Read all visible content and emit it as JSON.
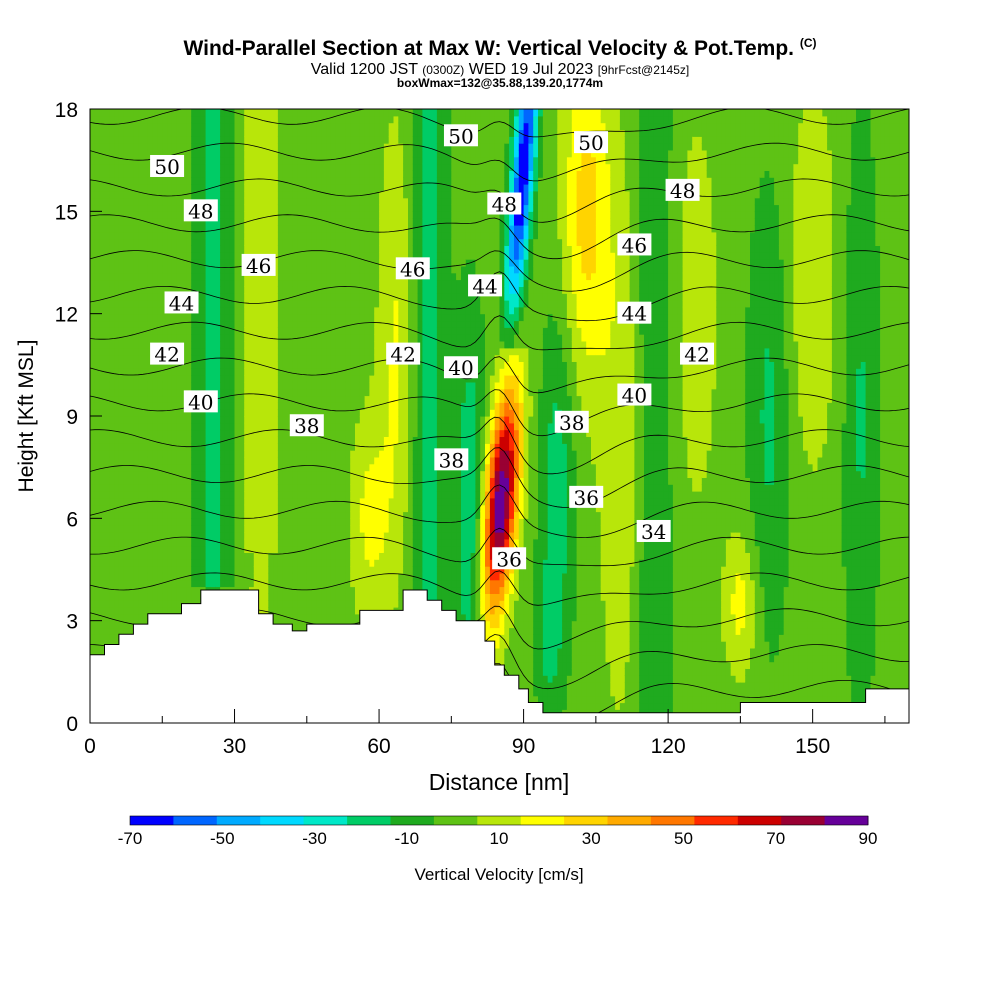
{
  "title": {
    "main": "Wind-Parallel Section at Max W: Vertical Velocity & Pot.Temp.",
    "copyright": "(C)",
    "valid_prefix": "Valid 1200 JST",
    "valid_utc": "(0300Z)",
    "valid_date": "WED 19 Jul 2023",
    "forecast": "[9hrFcst@2145z]",
    "box_info": "boxWmax=132@35.88,139.20,1774m"
  },
  "chart_data": {
    "type": "heatmap",
    "xlabel": "Distance [nm]",
    "ylabel": "Height [Kft MSL]",
    "xlim": [
      0,
      170
    ],
    "ylim": [
      0,
      18
    ],
    "x_ticks": [
      "0",
      "30",
      "60",
      "90",
      "120",
      "150"
    ],
    "y_ticks": [
      "0",
      "3",
      "6",
      "9",
      "12",
      "15",
      "18"
    ],
    "colorbar": {
      "label": "Vertical Velocity [cm/s]",
      "ticks": [
        "-70",
        "-50",
        "-30",
        "-10",
        "10",
        "30",
        "50",
        "70",
        "90"
      ],
      "levels": [
        -70,
        -60,
        -50,
        -40,
        -30,
        -20,
        -10,
        0,
        10,
        20,
        30,
        40,
        50,
        60,
        70,
        80,
        90
      ],
      "colors": [
        "#0000ff",
        "#0066ff",
        "#00aaff",
        "#00d9ff",
        "#00e8c8",
        "#00cc66",
        "#1faa1f",
        "#5ec215",
        "#b8e60a",
        "#ffff00",
        "#ffd400",
        "#ffaa00",
        "#ff7700",
        "#ff2a00",
        "#cc0000",
        "#990033",
        "#660099"
      ]
    },
    "terrain_kft": [
      [
        0,
        2
      ],
      [
        3,
        2.3
      ],
      [
        6,
        2.6
      ],
      [
        9,
        2.9
      ],
      [
        12,
        3.2
      ],
      [
        19,
        3.5
      ],
      [
        23,
        3.9
      ],
      [
        32,
        3.9
      ],
      [
        35,
        3.2
      ],
      [
        38,
        2.9
      ],
      [
        42,
        2.7
      ],
      [
        45,
        2.9
      ],
      [
        52,
        2.9
      ],
      [
        56,
        3.3
      ],
      [
        61,
        3.3
      ],
      [
        65,
        3.9
      ],
      [
        70,
        3.6
      ],
      [
        73,
        3.3
      ],
      [
        76,
        3.0
      ],
      [
        80,
        3.0
      ],
      [
        82,
        2.4
      ],
      [
        84,
        1.7
      ],
      [
        86,
        1.4
      ],
      [
        89,
        1.0
      ],
      [
        91,
        0.6
      ],
      [
        94,
        0.3
      ],
      [
        134,
        0.3
      ],
      [
        135,
        0.6
      ],
      [
        160,
        0.6
      ],
      [
        161,
        1.0
      ],
      [
        170,
        1.0
      ]
    ],
    "isentrope_labels": [
      {
        "text": "50",
        "x": 16,
        "y": 16.3
      },
      {
        "text": "48",
        "x": 23,
        "y": 15.0
      },
      {
        "text": "46",
        "x": 35,
        "y": 13.4
      },
      {
        "text": "44",
        "x": 19,
        "y": 12.3
      },
      {
        "text": "42",
        "x": 16,
        "y": 10.8
      },
      {
        "text": "40",
        "x": 23,
        "y": 9.4
      },
      {
        "text": "38",
        "x": 45,
        "y": 8.7
      },
      {
        "text": "50",
        "x": 77,
        "y": 17.2
      },
      {
        "text": "46",
        "x": 67,
        "y": 13.3
      },
      {
        "text": "42",
        "x": 65,
        "y": 10.8
      },
      {
        "text": "40",
        "x": 77,
        "y": 10.4
      },
      {
        "text": "38",
        "x": 75,
        "y": 7.7
      },
      {
        "text": "48",
        "x": 86,
        "y": 15.2
      },
      {
        "text": "44",
        "x": 82,
        "y": 12.8
      },
      {
        "text": "36",
        "x": 87,
        "y": 4.8
      },
      {
        "text": "50",
        "x": 104,
        "y": 17.0
      },
      {
        "text": "48",
        "x": 123,
        "y": 15.6
      },
      {
        "text": "46",
        "x": 113,
        "y": 14.0
      },
      {
        "text": "44",
        "x": 113,
        "y": 12.0
      },
      {
        "text": "42",
        "x": 126,
        "y": 10.8
      },
      {
        "text": "40",
        "x": 113,
        "y": 9.6
      },
      {
        "text": "38",
        "x": 100,
        "y": 8.8
      },
      {
        "text": "36",
        "x": 103,
        "y": 6.6
      },
      {
        "text": "34",
        "x": 117,
        "y": 5.6
      }
    ]
  }
}
